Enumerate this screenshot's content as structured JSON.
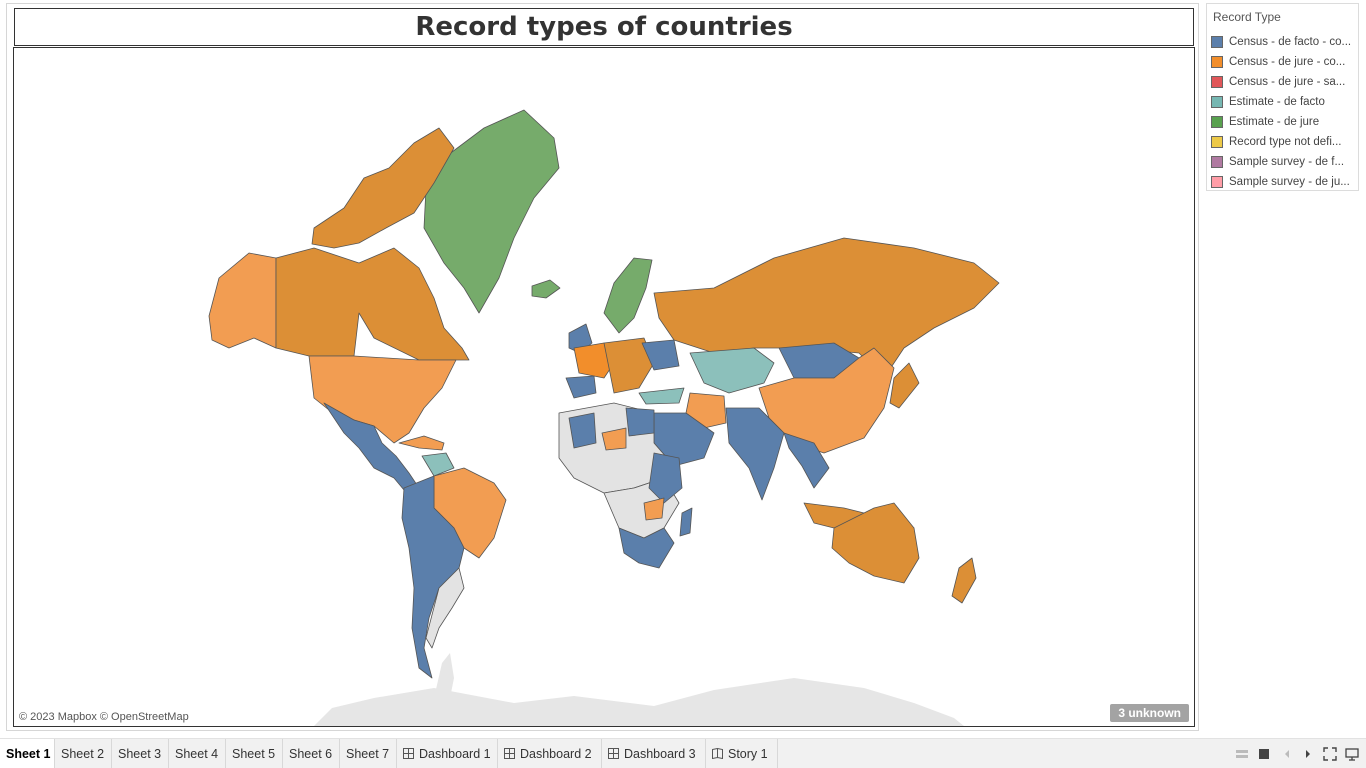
{
  "title": "Record types of countries",
  "map": {
    "attribution": "© 2023 Mapbox © OpenStreetMap",
    "unknown_label": "3 unknown",
    "ocean_color": "#ffffff",
    "no_data_color": "#e3e3e3"
  },
  "legend": {
    "title": "Record Type",
    "items": [
      {
        "label": "Census - de facto - co...",
        "color": "#5b7fab"
      },
      {
        "label": "Census - de jure - co...",
        "color": "#f28e2b"
      },
      {
        "label": "Census - de jure - sa...",
        "color": "#e15759"
      },
      {
        "label": "Estimate - de facto",
        "color": "#76b7b2"
      },
      {
        "label": "Estimate - de jure",
        "color": "#59a14f"
      },
      {
        "label": "Record type not defi...",
        "color": "#edc948"
      },
      {
        "label": "Sample survey - de f...",
        "color": "#b07aa1"
      },
      {
        "label": "Sample survey - de ju...",
        "color": "#ff9da7"
      }
    ]
  },
  "tabs": [
    {
      "label": "Sheet 1",
      "type": "sheet",
      "active": true
    },
    {
      "label": "Sheet 2",
      "type": "sheet"
    },
    {
      "label": "Sheet 3",
      "type": "sheet"
    },
    {
      "label": "Sheet 4",
      "type": "sheet"
    },
    {
      "label": "Sheet 5",
      "type": "sheet"
    },
    {
      "label": "Sheet 6",
      "type": "sheet"
    },
    {
      "label": "Sheet 7",
      "type": "sheet"
    },
    {
      "label": "Dashboard 1",
      "type": "dashboard"
    },
    {
      "label": "Dashboard 2",
      "type": "dashboard"
    },
    {
      "label": "Dashboard 3",
      "type": "dashboard"
    },
    {
      "label": "Story 1",
      "type": "story"
    }
  ],
  "controls": [
    {
      "name": "show-sheet-sorter-icon"
    },
    {
      "name": "show-filmstrip-icon"
    },
    {
      "name": "previous-sheet-icon"
    },
    {
      "name": "next-sheet-icon"
    },
    {
      "name": "fit-screen-icon"
    },
    {
      "name": "presentation-mode-icon"
    }
  ]
}
